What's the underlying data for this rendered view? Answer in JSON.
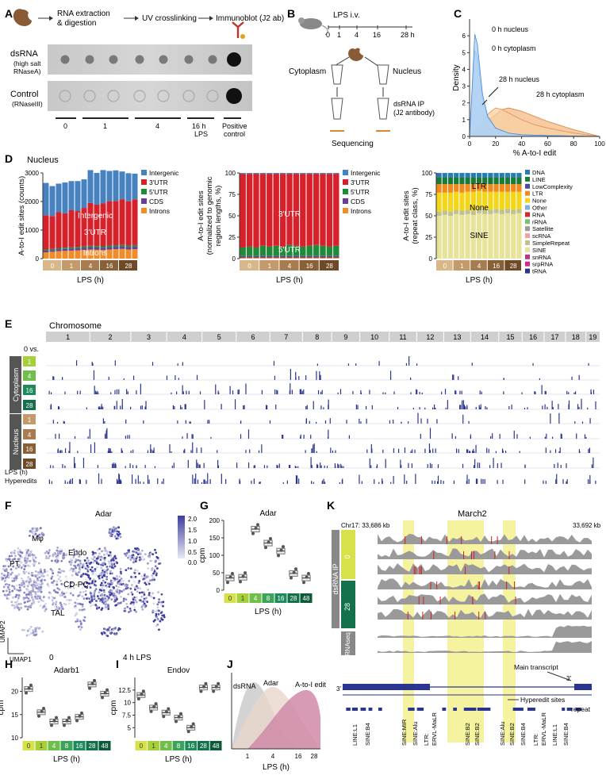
{
  "panel_letters": {
    "A": "A",
    "B": "B",
    "C": "C",
    "D": "D",
    "E": "E",
    "F": "F",
    "G": "G",
    "H": "H",
    "I": "I",
    "J": "J",
    "K": "K"
  },
  "panelA": {
    "steps": [
      "RNA extraction",
      "& digestion",
      "UV crosslinking",
      "Immunoblot (J2 ab)"
    ],
    "row1_label": "dsRNA",
    "row1_sub1": "(high salt",
    "row1_sub2": "RNaseA)",
    "row2_label": "Control",
    "row2_sub": "(RNaseIII)",
    "time_labels": [
      "0",
      "1",
      "4",
      "16 h",
      "LPS"
    ],
    "positive_label1": "Positive",
    "positive_label2": "control"
  },
  "panelB": {
    "lps": "LPS i.v.",
    "ticks": [
      "0",
      "1",
      "4",
      "16",
      "28 h"
    ],
    "cytoplasm": "Cytoplasm",
    "nucleus": "Nucleus",
    "ip1": "dsRNA IP",
    "ip2": "(J2 antibody)",
    "sequencing": "Sequencing"
  },
  "colors": {
    "intergenic": "#4682c0",
    "utr3": "#d8202a",
    "utr5": "#1e8a3a",
    "cds": "#6a3d9a",
    "introns": "#f28c28",
    "lps0": "#d8b88a",
    "lps1": "#c49a6c",
    "lps4": "#a87c50",
    "lps16": "#8a6038",
    "lps28": "#6e4a28",
    "g0": "#d7e24a",
    "g1": "#a6cf3a",
    "g4": "#6fbf4a",
    "g8": "#3ea35a",
    "g16": "#1f8a5a",
    "g28": "#13704a",
    "g48": "#0d5a3a",
    "yellow": "#f6f3a0",
    "grey": "#9a9a9a",
    "navy": "#2a3590"
  },
  "chart_data": [
    {
      "id": "C",
      "type": "area",
      "xlabel": "% A-to-I edit",
      "ylabel": "Density",
      "xlim": [
        0,
        100
      ],
      "ylim": [
        0,
        7
      ],
      "x_ticks": [
        "0",
        "20",
        "40",
        "60",
        "80",
        "100"
      ],
      "y_ticks": [
        "0",
        "1",
        "2",
        "3",
        "4",
        "5",
        "6"
      ],
      "series": [
        {
          "name": "0 h nucleus",
          "x": [
            0,
            2,
            4,
            6,
            8,
            10,
            14,
            20,
            30,
            40,
            60,
            100
          ],
          "y": [
            0,
            3.0,
            6.1,
            5.5,
            4.0,
            2.5,
            1.2,
            0.5,
            0.2,
            0.1,
            0.05,
            0
          ]
        },
        {
          "name": "0 h cytoplasm",
          "x": [
            0,
            2,
            4,
            6,
            8,
            10,
            14,
            20,
            30,
            40,
            60,
            100
          ],
          "y": [
            0,
            2.6,
            5.1,
            4.8,
            3.5,
            2.2,
            1.1,
            0.5,
            0.2,
            0.1,
            0.05,
            0
          ]
        },
        {
          "name": "28 h nucleus",
          "x": [
            0,
            5,
            10,
            15,
            20,
            25,
            30,
            40,
            50,
            60,
            80,
            100
          ],
          "y": [
            0,
            0.3,
            0.9,
            1.4,
            1.7,
            1.6,
            1.4,
            1.0,
            0.7,
            0.5,
            0.2,
            0
          ]
        },
        {
          "name": "28 h cytoplasm",
          "x": [
            0,
            5,
            10,
            15,
            20,
            25,
            30,
            40,
            50,
            60,
            80,
            100
          ],
          "y": [
            0,
            0.2,
            0.6,
            1.0,
            1.3,
            1.6,
            1.7,
            1.5,
            1.2,
            0.9,
            0.4,
            0
          ]
        }
      ],
      "annotations": [
        "0 h nucleus",
        "0 h cytoplasm",
        "28 h nucleus",
        "28 h cytoplasm"
      ]
    },
    {
      "id": "D1",
      "type": "bar",
      "title": "Nucleus",
      "ylabel": "A-to-I edit sites (counts)",
      "xlabel": "LPS (h)",
      "ylim": [
        0,
        3000
      ],
      "y_ticks": [
        "0",
        "1000",
        "2000",
        "3000"
      ],
      "groups": [
        "0",
        "1",
        "4",
        "16",
        "28"
      ],
      "legend": [
        "Intergenic",
        "3'UTR",
        "5'UTR",
        "CDS",
        "Introns"
      ],
      "inner_labels": [
        "Intergenic",
        "3'UTR",
        "Introns"
      ],
      "series": [
        {
          "name": "Introns",
          "values": [
            220,
            240,
            260,
            270,
            280,
            290,
            300,
            320,
            310,
            300,
            320,
            330,
            340,
            320,
            330
          ]
        },
        {
          "name": "CDS",
          "values": [
            60,
            60,
            70,
            70,
            70,
            75,
            75,
            80,
            80,
            80,
            85,
            85,
            85,
            85,
            90
          ]
        },
        {
          "name": "5'UTR",
          "values": [
            40,
            40,
            45,
            45,
            45,
            50,
            50,
            50,
            50,
            50,
            55,
            55,
            55,
            55,
            55
          ]
        },
        {
          "name": "3'UTR",
          "values": [
            1200,
            1150,
            1250,
            1200,
            1300,
            1250,
            1350,
            1500,
            1450,
            1500,
            1550,
            1550,
            1600,
            1550,
            1600
          ]
        },
        {
          "name": "Intergenic",
          "values": [
            1130,
            1050,
            1000,
            1080,
            1020,
            1050,
            1000,
            1150,
            1110,
            1170,
            1060,
            1070,
            970,
            980,
            900
          ]
        }
      ]
    },
    {
      "id": "D2",
      "type": "bar",
      "ylabel1": "A-to-I edit sites",
      "ylabel2": "(normalized to genomic",
      "ylabel3": "region lengths, %)",
      "xlabel": "LPS (h)",
      "ylim": [
        0,
        100
      ],
      "y_ticks": [
        "0",
        "25",
        "50",
        "75",
        "100"
      ],
      "groups": [
        "0",
        "1",
        "4",
        "16",
        "28"
      ],
      "legend": [
        "Intergenic",
        "3'UTR",
        "5'UTR",
        "CDS",
        "Introns"
      ],
      "inner_labels": [
        "3'UTR",
        "5'UTR"
      ],
      "series": [
        {
          "name": "Introns",
          "values": [
            1,
            1,
            1,
            1,
            1,
            1,
            1,
            1,
            1,
            1,
            1,
            1,
            1,
            1,
            1
          ]
        },
        {
          "name": "CDS",
          "values": [
            2,
            2,
            2,
            2,
            2,
            2,
            2,
            2,
            2,
            2,
            2,
            2,
            2,
            2,
            2
          ]
        },
        {
          "name": "5'UTR",
          "values": [
            10,
            11,
            10,
            12,
            11,
            12,
            11,
            13,
            12,
            11,
            12,
            13,
            12,
            11,
            12
          ]
        },
        {
          "name": "3'UTR",
          "values": [
            86,
            85,
            86,
            84,
            85,
            84,
            85,
            83,
            84,
            85,
            84,
            83,
            84,
            85,
            84
          ]
        },
        {
          "name": "Intergenic",
          "values": [
            1,
            1,
            1,
            1,
            1,
            1,
            1,
            1,
            1,
            1,
            1,
            1,
            1,
            1,
            1
          ]
        }
      ]
    },
    {
      "id": "D3",
      "type": "bar",
      "ylabel1": "A-to-I edit sites",
      "ylabel2": "(repeat class, %)",
      "xlabel": "LPS (h)",
      "ylim": [
        0,
        100
      ],
      "y_ticks": [
        "0",
        "25",
        "50",
        "75",
        "100"
      ],
      "groups": [
        "0",
        "1",
        "4",
        "16",
        "28"
      ],
      "legend": [
        "DNA",
        "LINE",
        "LowComplexity",
        "LTR",
        "None",
        "Other",
        "RNA",
        "rRNA",
        "Satellite",
        "scRNA",
        "SimpleRepeat",
        "SINE",
        "snRNA",
        "srpRNA",
        "tRNA"
      ],
      "legend_colors": [
        "#2a7ab8",
        "#1a7a3a",
        "#4a4aa0",
        "#f08a1e",
        "#f3d51a",
        "#7fb2e0",
        "#d62828",
        "#7ac07a",
        "#9a9a9a",
        "#f4a0a0",
        "#c0c090",
        "#e8e39a",
        "#b03a8a",
        "#d02a8a",
        "#2a3590"
      ],
      "inner_labels": [
        "LTR",
        "None",
        "SINE"
      ],
      "series": [
        {
          "name": "SINE",
          "values": [
            50,
            51,
            50,
            52,
            51,
            52,
            51,
            53,
            52,
            52,
            53,
            52,
            53,
            52,
            53
          ]
        },
        {
          "name": "SimpleRepeat",
          "values": [
            5,
            5,
            5,
            5,
            5,
            5,
            5,
            5,
            5,
            5,
            5,
            5,
            5,
            5,
            5
          ]
        },
        {
          "name": "None",
          "values": [
            22,
            21,
            22,
            21,
            21,
            21,
            22,
            21,
            21,
            21,
            20,
            21,
            20,
            21,
            20
          ]
        },
        {
          "name": "LTR",
          "values": [
            10,
            10,
            10,
            9,
            10,
            9,
            9,
            9,
            9,
            9,
            9,
            9,
            9,
            9,
            9
          ]
        },
        {
          "name": "LINE",
          "values": [
            8,
            8,
            8,
            8,
            8,
            8,
            8,
            7,
            8,
            8,
            8,
            8,
            8,
            8,
            8
          ]
        },
        {
          "name": "DNA",
          "values": [
            5,
            5,
            5,
            5,
            5,
            5,
            5,
            5,
            5,
            5,
            5,
            5,
            5,
            5,
            5
          ]
        }
      ]
    },
    {
      "id": "G",
      "type": "scatter",
      "title": "Adar",
      "ylabel": "cpm",
      "xlabel": "LPS (h)",
      "ylim": [
        0,
        200
      ],
      "y_ticks": [
        "0",
        "50",
        "100",
        "150",
        "200"
      ],
      "categories": [
        "0",
        "1",
        "4",
        "8",
        "16",
        "28",
        "48"
      ],
      "medians": [
        35,
        37,
        175,
        135,
        112,
        48,
        35
      ]
    },
    {
      "id": "H",
      "type": "scatter",
      "title": "Adarb1",
      "ylabel": "cpm",
      "xlabel": "LPS (h)",
      "ylim": [
        10,
        23
      ],
      "y_ticks": [
        "10",
        "15",
        "20"
      ],
      "categories": [
        "0",
        "1",
        "4",
        "8",
        "16",
        "28",
        "48"
      ],
      "medians": [
        20.5,
        15.5,
        13.5,
        13.5,
        14.5,
        21.5,
        19.5
      ]
    },
    {
      "id": "I",
      "type": "scatter",
      "title": "Endov",
      "ylabel": "cpm",
      "xlabel": "LPS (h)",
      "ylim": [
        3,
        15
      ],
      "y_ticks": [
        "5",
        "7.5",
        "10",
        "12.5"
      ],
      "categories": [
        "0",
        "1",
        "4",
        "8",
        "16",
        "28",
        "48"
      ],
      "medians": [
        11.5,
        9,
        8,
        7,
        5,
        13,
        13
      ]
    },
    {
      "id": "J",
      "type": "area",
      "xlabel": "LPS (h)",
      "x_ticks": [
        "1",
        "4",
        "16",
        "28"
      ],
      "series": [
        {
          "name": "dsRNA"
        },
        {
          "name": "Adar"
        },
        {
          "name": "A-to-I edit"
        }
      ]
    }
  ],
  "panelE": {
    "title": "Chromosome",
    "chromosomes": [
      "1",
      "2",
      "3",
      "4",
      "5",
      "6",
      "7",
      "8",
      "9",
      "10",
      "11",
      "12",
      "13",
      "14",
      "15",
      "16",
      "17",
      "18",
      "19"
    ],
    "vs": "0 vs.",
    "cyto": "Cytoplasm",
    "nuc": "Nucleus",
    "rows": [
      "1",
      "4",
      "16",
      "28",
      "1",
      "4",
      "16",
      "28"
    ],
    "lps": "LPS (h)",
    "hyper": "Hyperedits"
  },
  "panelF": {
    "title": "Adar",
    "labels": [
      "Mφ",
      "Endo",
      "PT",
      "TAL",
      "CD-PC"
    ],
    "scale": [
      "2.0",
      "1.5",
      "1.0",
      "0.5",
      "0.0"
    ],
    "umap2": "UMAP2",
    "umap1": "UMAP1",
    "cond0": "0",
    "cond4": "4 h LPS"
  },
  "panelK": {
    "title": "March2",
    "chr": "Chr17: 33,686 kb",
    "end": "33,692 kb",
    "dsrna": "dsRNA IP",
    "t0": "0",
    "t28": "28",
    "rnaseq": "RNAseq",
    "main": "Main transcript",
    "three": "3'",
    "hyper": "Hyperedit sites",
    "repeat": "repeat",
    "repeats": [
      "LINE:L1",
      "SINE:B4",
      "SINE:MIR",
      "SINE:Alu",
      "LTR:",
      "ERVL-MaLR",
      "SINE:B2",
      "SINE:B2",
      "SINE:Alu",
      "SINE:B2",
      "SINE:B4",
      "LTR:",
      "ERVL-MaLR",
      "LINE:L1",
      "SINE:B4"
    ]
  }
}
